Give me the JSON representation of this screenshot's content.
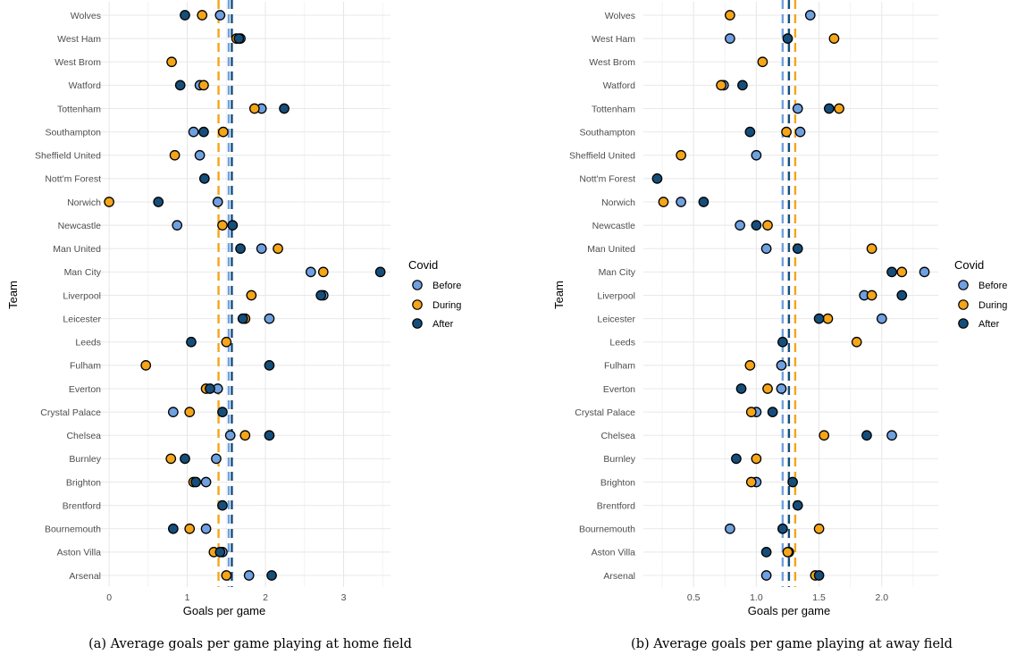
{
  "teams": [
    "Wolves",
    "West Ham",
    "West Brom",
    "Watford",
    "Tottenham",
    "Southampton",
    "Sheffield United",
    "Nott'm Forest",
    "Norwich",
    "Newcastle",
    "Man United",
    "Man City",
    "Liverpool",
    "Leicester",
    "Leeds",
    "Fulham",
    "Everton",
    "Crystal Palace",
    "Chelsea",
    "Burnley",
    "Brighton",
    "Brentford",
    "Bournemouth",
    "Aston Villa",
    "Arsenal"
  ],
  "legend": {
    "title": "Covid",
    "entries": [
      {
        "key": "before",
        "label": "Before",
        "color": "#6fa0e0"
      },
      {
        "key": "during",
        "label": "During",
        "color": "#f5a519"
      },
      {
        "key": "after",
        "label": "After",
        "color": "#164e7a"
      }
    ]
  },
  "chart_data": [
    {
      "id": "home",
      "type": "scatter",
      "caption": "(a)  Average goals per game playing at home field",
      "xlabel": "Goals per game",
      "ylabel": "Team",
      "xlim": [
        -0.15,
        3.6
      ],
      "xticks": [
        0,
        1,
        2,
        3
      ],
      "xtick_labels": [
        "0",
        "1",
        "2",
        "3"
      ],
      "mean_lines": {
        "before": 1.53,
        "during": 1.4,
        "after": 1.57
      },
      "values": {
        "Wolves": {
          "before": 1.42,
          "during": 1.19,
          "after": 0.97
        },
        "West Ham": {
          "before": 1.68,
          "during": 1.63,
          "after": 1.66
        },
        "West Brom": {
          "during": 0.8
        },
        "Watford": {
          "before": 1.16,
          "during": 1.21,
          "after": 0.91
        },
        "Tottenham": {
          "before": 1.95,
          "during": 1.86,
          "after": 2.24
        },
        "Southampton": {
          "before": 1.08,
          "during": 1.46,
          "after": 1.21
        },
        "Sheffield United": {
          "before": 1.16,
          "during": 0.84
        },
        "Nott'm Forest": {
          "after": 1.22
        },
        "Norwich": {
          "before": 1.39,
          "during": 0.0,
          "after": 0.63
        },
        "Newcastle": {
          "before": 0.87,
          "during": 1.45,
          "after": 1.58
        },
        "Man United": {
          "before": 1.95,
          "during": 2.16,
          "after": 1.68
        },
        "Man City": {
          "before": 2.58,
          "during": 2.74,
          "after": 3.47
        },
        "Liverpool": {
          "before": 2.74,
          "during": 1.82,
          "after": 2.71
        },
        "Leicester": {
          "before": 2.05,
          "during": 1.74,
          "after": 1.71
        },
        "Leeds": {
          "during": 1.5,
          "after": 1.05
        },
        "Fulham": {
          "during": 0.47,
          "after": 2.05
        },
        "Everton": {
          "before": 1.39,
          "during": 1.24,
          "after": 1.29
        },
        "Crystal Palace": {
          "before": 0.82,
          "during": 1.03,
          "after": 1.45
        },
        "Chelsea": {
          "before": 1.55,
          "during": 1.74,
          "after": 2.05
        },
        "Burnley": {
          "before": 1.37,
          "during": 0.79,
          "after": 0.97
        },
        "Brighton": {
          "before": 1.24,
          "during": 1.08,
          "after": 1.11
        },
        "Brentford": {
          "after": 1.45
        },
        "Bournemouth": {
          "before": 1.24,
          "during": 1.03,
          "after": 0.82
        },
        "Aston Villa": {
          "before": 1.45,
          "during": 1.34,
          "after": 1.42
        },
        "Arsenal": {
          "before": 1.79,
          "during": 1.5,
          "after": 2.08
        }
      }
    },
    {
      "id": "away",
      "type": "scatter",
      "caption": "(b)  Average goals per game playing at away field",
      "xlabel": "Goals per game",
      "ylabel": "Team",
      "xlim": [
        0.1,
        2.45
      ],
      "xticks": [
        0.5,
        1.0,
        1.5,
        2.0
      ],
      "xtick_labels": [
        "0.5",
        "1.0",
        "1.5",
        "2.0"
      ],
      "mean_lines": {
        "before": 1.21,
        "during": 1.31,
        "after": 1.26
      },
      "values": {
        "Wolves": {
          "before": 1.43,
          "during": 0.79
        },
        "West Ham": {
          "before": 0.79,
          "during": 1.62,
          "after": 1.25
        },
        "West Brom": {
          "during": 1.05
        },
        "Watford": {
          "before": 0.74,
          "during": 0.72,
          "after": 0.89
        },
        "Tottenham": {
          "before": 1.33,
          "during": 1.66,
          "after": 1.58
        },
        "Southampton": {
          "before": 1.35,
          "during": 1.24,
          "after": 0.95
        },
        "Sheffield United": {
          "before": 1.0,
          "during": 0.4
        },
        "Nott'm Forest": {
          "after": 0.21
        },
        "Norwich": {
          "before": 0.4,
          "during": 0.26,
          "after": 0.58
        },
        "Newcastle": {
          "before": 0.87,
          "during": 1.09,
          "after": 1.0
        },
        "Man United": {
          "before": 1.08,
          "during": 1.92,
          "after": 1.33
        },
        "Man City": {
          "before": 2.34,
          "during": 2.16,
          "after": 2.08
        },
        "Liverpool": {
          "before": 1.86,
          "during": 1.92,
          "after": 2.16
        },
        "Leicester": {
          "before": 2.0,
          "during": 1.57,
          "after": 1.5
        },
        "Leeds": {
          "during": 1.8,
          "after": 1.21
        },
        "Fulham": {
          "before": 1.2,
          "during": 0.95
        },
        "Everton": {
          "before": 1.2,
          "during": 1.09,
          "after": 0.88
        },
        "Crystal Palace": {
          "before": 1.0,
          "during": 0.96,
          "after": 1.13
        },
        "Chelsea": {
          "before": 2.08,
          "during": 1.54,
          "after": 1.88
        },
        "Burnley": {
          "during": 1.0,
          "after": 0.84
        },
        "Brighton": {
          "before": 1.0,
          "during": 0.96,
          "after": 1.29
        },
        "Brentford": {
          "after": 1.33
        },
        "Bournemouth": {
          "before": 0.79,
          "during": 1.5,
          "after": 1.21
        },
        "Aston Villa": {
          "before": 1.26,
          "during": 1.25,
          "after": 1.08
        },
        "Arsenal": {
          "before": 1.08,
          "during": 1.47,
          "after": 1.5
        }
      }
    }
  ]
}
